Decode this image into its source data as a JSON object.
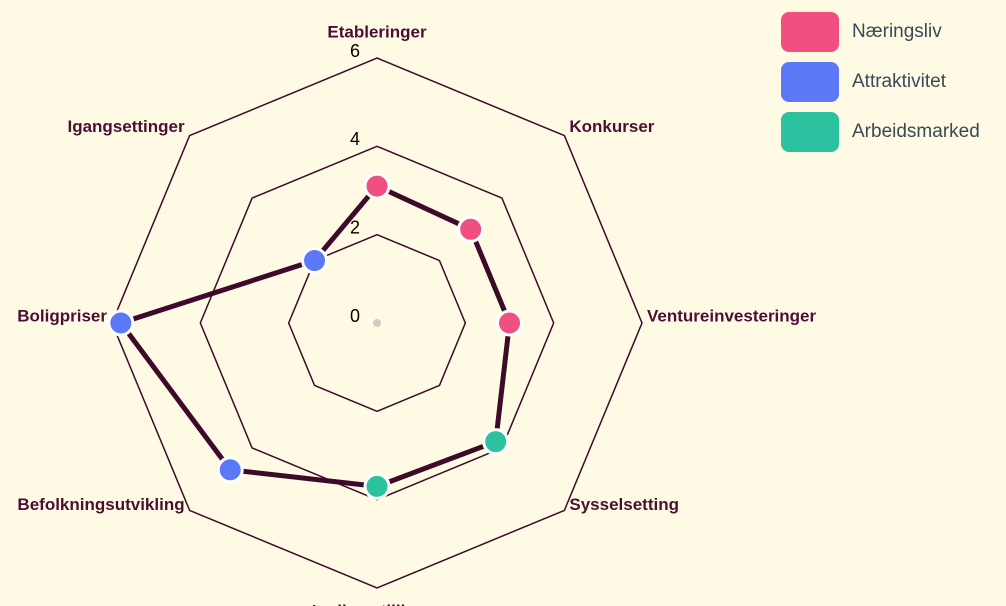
{
  "chart_data": {
    "type": "radar",
    "categories": [
      "Etableringer",
      "Konkurser",
      "Ventureinvesteringer",
      "Sysselsetting",
      "Ledige stillinger",
      "Befolkningsutvikling",
      "Boligpriser",
      "Igangsettinger"
    ],
    "values": [
      3.1,
      3.0,
      3.0,
      3.8,
      3.7,
      4.7,
      5.8,
      2.0
    ],
    "point_group": [
      0,
      0,
      0,
      2,
      2,
      1,
      1,
      1
    ],
    "legend": [
      {
        "name": "Næringsliv",
        "color": "#ef5080"
      },
      {
        "name": "Attraktivitet",
        "color": "#5b78f6"
      },
      {
        "name": "Arbeidsmarked",
        "color": "#2cc19f"
      }
    ],
    "line_color": "#3d0a2a",
    "rlim": [
      0,
      6
    ],
    "rticks": [
      0,
      2,
      4,
      6
    ]
  }
}
